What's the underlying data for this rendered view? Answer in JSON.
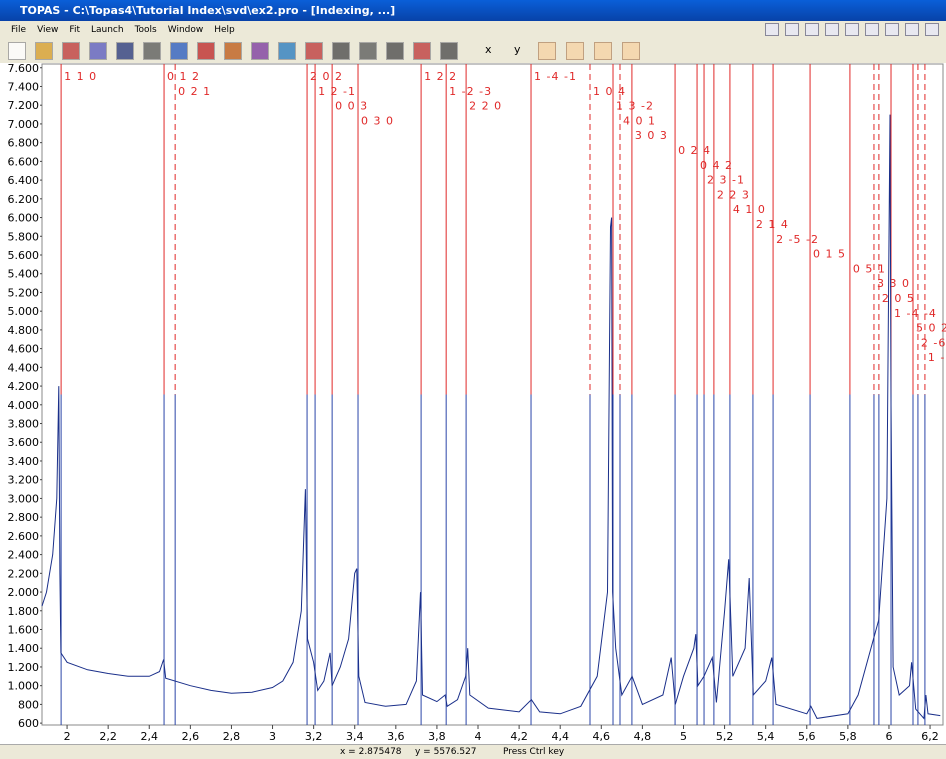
{
  "window": {
    "title": "TOPAS - C:\\Topas4\\Tutorial Index\\svd\\ex2.pro - [Indexing, ...]",
    "menu": [
      "File",
      "View",
      "Fit",
      "Launch",
      "Tools",
      "Window",
      "Help"
    ],
    "toolbar_labels": [
      "x",
      "y"
    ],
    "status": [
      "x = 2.875478",
      "y = 5576.527",
      "Press Ctrl key"
    ]
  },
  "chart_data": {
    "type": "line",
    "xlim": [
      1.878,
      6.263
    ],
    "ylim": [
      580,
      7640
    ],
    "xticks": [
      2,
      {
        "value": 2.2,
        "label": "2,2"
      },
      {
        "value": 2.4,
        "label": "2,4"
      },
      {
        "value": 2.6,
        "label": "2,6"
      },
      {
        "value": 2.8,
        "label": "2,8"
      },
      3,
      {
        "value": 3.2,
        "label": "3,2"
      },
      {
        "value": 3.4,
        "label": "3,4"
      },
      {
        "value": 3.6,
        "label": "3,6"
      },
      {
        "value": 3.8,
        "label": "3,8"
      },
      4,
      {
        "value": 4.2,
        "label": "4,2"
      },
      {
        "value": 4.4,
        "label": "4,4"
      },
      {
        "value": 4.6,
        "label": "4,6"
      },
      {
        "value": 4.8,
        "label": "4,8"
      },
      5,
      {
        "value": 5.2,
        "label": "5,2"
      },
      {
        "value": 5.4,
        "label": "5,4"
      },
      {
        "value": 5.6,
        "label": "5,6"
      },
      {
        "value": 5.8,
        "label": "5,8"
      },
      6,
      {
        "value": 6.2,
        "label": "6,2"
      }
    ],
    "yticks": [
      {
        "value": 600,
        "label": "600"
      },
      {
        "value": 800,
        "label": "800"
      },
      {
        "value": 1000,
        "label": "1.000"
      },
      {
        "value": 1200,
        "label": "1.200"
      },
      {
        "value": 1400,
        "label": "1.400"
      },
      {
        "value": 1600,
        "label": "1.600"
      },
      {
        "value": 1800,
        "label": "1.800"
      },
      {
        "value": 2000,
        "label": "2.000"
      },
      {
        "value": 2200,
        "label": "2.200"
      },
      {
        "value": 2400,
        "label": "2.400"
      },
      {
        "value": 2600,
        "label": "2.600"
      },
      {
        "value": 2800,
        "label": "2.800"
      },
      {
        "value": 3000,
        "label": "3.000"
      },
      {
        "value": 3200,
        "label": "3.200"
      },
      {
        "value": 3400,
        "label": "3.400"
      },
      {
        "value": 3600,
        "label": "3.600"
      },
      {
        "value": 3800,
        "label": "3.800"
      },
      {
        "value": 4000,
        "label": "4.000"
      },
      {
        "value": 4200,
        "label": "4.200"
      },
      {
        "value": 4400,
        "label": "4.400"
      },
      {
        "value": 4600,
        "label": "4.600"
      },
      {
        "value": 4800,
        "label": "4.800"
      },
      {
        "value": 5000,
        "label": "5.000"
      },
      {
        "value": 5200,
        "label": "5.200"
      },
      {
        "value": 5400,
        "label": "5.400"
      },
      {
        "value": 5600,
        "label": "5.600"
      },
      {
        "value": 5800,
        "label": "5.800"
      },
      {
        "value": 6000,
        "label": "6.000"
      },
      {
        "value": 6200,
        "label": "6.200"
      },
      {
        "value": 6400,
        "label": "6.400"
      },
      {
        "value": 6600,
        "label": "6.600"
      },
      {
        "value": 6800,
        "label": "6.800"
      },
      {
        "value": 7000,
        "label": "7.000"
      },
      {
        "value": 7200,
        "label": "7.200"
      },
      {
        "value": 7400,
        "label": "7.400"
      },
      {
        "value": 7600,
        "label": "7.600"
      }
    ],
    "x": [
      1.878,
      1.9,
      1.93,
      1.95,
      1.96,
      1.965,
      1.97,
      2.0,
      2.1,
      2.2,
      2.3,
      2.4,
      2.45,
      2.47,
      2.48,
      2.6,
      2.7,
      2.8,
      2.9,
      3.0,
      3.05,
      3.1,
      3.14,
      3.16,
      3.17,
      3.2,
      3.22,
      3.25,
      3.28,
      3.29,
      3.33,
      3.37,
      3.4,
      3.41,
      3.42,
      3.45,
      3.55,
      3.65,
      3.7,
      3.72,
      3.73,
      3.8,
      3.84,
      3.85,
      3.9,
      3.94,
      3.95,
      3.96,
      4.05,
      4.2,
      4.26,
      4.3,
      4.4,
      4.5,
      4.58,
      4.63,
      4.645,
      4.65,
      4.655,
      4.67,
      4.7,
      4.75,
      4.8,
      4.9,
      4.94,
      4.96,
      5.0,
      5.05,
      5.06,
      5.07,
      5.1,
      5.14,
      5.16,
      5.2,
      5.22,
      5.24,
      5.3,
      5.32,
      5.34,
      5.4,
      5.43,
      5.45,
      5.6,
      5.62,
      5.65,
      5.8,
      5.85,
      5.95,
      5.99,
      6.005,
      6.01,
      6.02,
      6.05,
      6.1,
      6.11,
      6.13,
      6.17,
      6.18,
      6.19,
      6.25
    ],
    "series": [
      {
        "color": "#1a2f8a",
        "values": [
          1850,
          2000,
          2400,
          3000,
          4200,
          2200,
          1350,
          1250,
          1170,
          1130,
          1100,
          1100,
          1150,
          1280,
          1080,
          1000,
          950,
          920,
          930,
          980,
          1050,
          1250,
          1800,
          3100,
          1500,
          1250,
          950,
          1050,
          1350,
          1000,
          1200,
          1500,
          2200,
          2250,
          1100,
          820,
          780,
          800,
          1050,
          2000,
          900,
          830,
          900,
          780,
          850,
          1100,
          1400,
          900,
          760,
          720,
          850,
          720,
          700,
          780,
          1100,
          2000,
          5900,
          6000,
          2000,
          1400,
          900,
          1100,
          800,
          900,
          1300,
          800,
          1100,
          1400,
          1550,
          1000,
          1100,
          1300,
          820,
          1800,
          2350,
          1100,
          1400,
          2150,
          900,
          1050,
          1300,
          800,
          700,
          780,
          650,
          700,
          900,
          1700,
          3000,
          7100,
          4000,
          1200,
          900,
          1000,
          1250,
          750,
          650,
          900,
          700,
          680
        ]
      }
    ],
    "reflections": {
      "color": "#e02828",
      "marker_color": "#2a45a8",
      "positions": [
        1.971,
        2.472,
        2.526,
        3.168,
        3.207,
        3.29,
        3.416,
        3.723,
        3.845,
        3.942,
        4.258,
        4.545,
        4.657,
        4.691,
        4.749,
        4.959,
        5.066,
        5.1,
        5.148,
        5.226,
        5.338,
        5.436,
        5.616,
        5.81,
        5.927,
        5.951,
        6.01,
        6.117,
        6.141,
        6.175
      ],
      "labels": [
        "1 1 0",
        "0 1 2",
        "0 2 1",
        "2 0 2",
        "1 2 -1",
        "0 0 3",
        "0 3 0",
        "1 2 2",
        "1 -2 -3",
        "2 2 0",
        "1 -4 -1",
        "1 0 4",
        "1 3 -2",
        "4 0 1",
        "3 0 3",
        "0 2 4",
        "0 4 2",
        "2 3 -1",
        "2 2 3",
        "4 1 0",
        "2 1 4",
        "2 -5 -2",
        "0 1 5",
        "0 5 1",
        "3 3 0",
        "2 0 5",
        "1 -4 -4",
        "5 0 2",
        "2 -6",
        "1 -"
      ],
      "dashed": [
        false,
        false,
        true,
        false,
        false,
        false,
        false,
        false,
        false,
        false,
        false,
        true,
        false,
        true,
        false,
        false,
        false,
        false,
        false,
        false,
        false,
        false,
        false,
        false,
        true,
        true,
        false,
        false,
        true,
        true
      ]
    }
  }
}
